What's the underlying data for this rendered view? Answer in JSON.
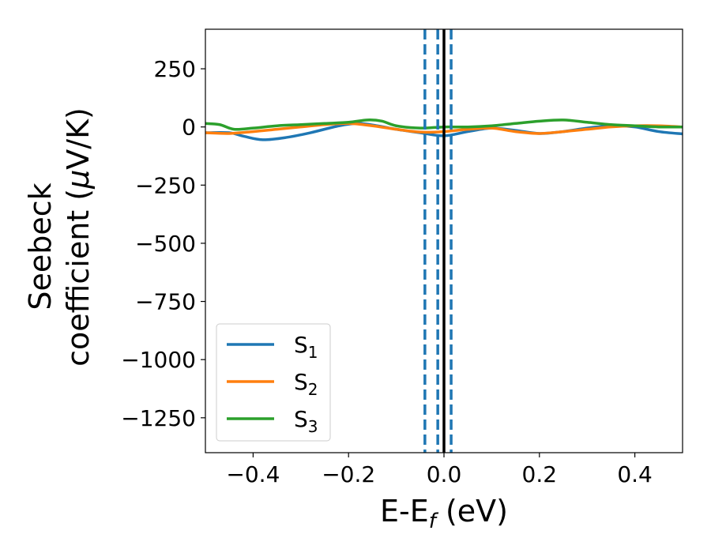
{
  "chart_data": {
    "type": "line",
    "xlabel": {
      "main": "E-E",
      "sub": "f",
      "suffix": " (eV)"
    },
    "ylabel": {
      "line1": "Seebeck",
      "line2_prefix": "coefficient  (",
      "line2_mu": "μ",
      "line2_suffix": "V/K)"
    },
    "xlim": [
      -0.5,
      0.5
    ],
    "ylim": [
      -1400,
      420
    ],
    "xticks": [
      {
        "value": -0.4,
        "label": "−0.4"
      },
      {
        "value": -0.2,
        "label": "−0.2"
      },
      {
        "value": 0.0,
        "label": "0.0"
      },
      {
        "value": 0.2,
        "label": "0.2"
      },
      {
        "value": 0.4,
        "label": "0.4"
      }
    ],
    "yticks": [
      {
        "value": 250,
        "label": "250"
      },
      {
        "value": 0,
        "label": "0"
      },
      {
        "value": -250,
        "label": "−250"
      },
      {
        "value": -500,
        "label": "−500"
      },
      {
        "value": -750,
        "label": "−750"
      },
      {
        "value": -1000,
        "label": "−1000"
      },
      {
        "value": -1250,
        "label": "−1250"
      }
    ],
    "grid": false,
    "legend_position": "lower-left",
    "series": [
      {
        "name": "S",
        "sub": "1",
        "color": "#1f77b4",
        "x": [
          -0.5,
          -0.45,
          -0.42,
          -0.38,
          -0.33,
          -0.28,
          -0.22,
          -0.18,
          -0.14,
          -0.1,
          -0.05,
          0.0,
          0.05,
          0.1,
          0.15,
          0.2,
          0.25,
          0.3,
          0.35,
          0.4,
          0.45,
          0.5
        ],
        "y": [
          -25,
          -25,
          -40,
          -55,
          -45,
          -25,
          5,
          15,
          5,
          -10,
          -25,
          -38,
          -20,
          -5,
          -15,
          -28,
          -20,
          -5,
          5,
          0,
          -20,
          -30
        ]
      },
      {
        "name": "S",
        "sub": "2",
        "color": "#ff7f0e",
        "x": [
          -0.5,
          -0.45,
          -0.4,
          -0.35,
          -0.3,
          -0.25,
          -0.2,
          -0.15,
          -0.1,
          -0.05,
          0.0,
          0.05,
          0.1,
          0.15,
          0.2,
          0.25,
          0.3,
          0.35,
          0.4,
          0.45,
          0.5
        ],
        "y": [
          -25,
          -28,
          -20,
          -10,
          0,
          10,
          15,
          5,
          -10,
          -22,
          -20,
          -10,
          -5,
          -20,
          -28,
          -20,
          -10,
          0,
          5,
          5,
          0
        ]
      },
      {
        "name": "S",
        "sub": "3",
        "color": "#2ca02c",
        "x": [
          -0.5,
          -0.47,
          -0.44,
          -0.4,
          -0.35,
          -0.3,
          -0.25,
          -0.2,
          -0.16,
          -0.13,
          -0.1,
          -0.05,
          0.0,
          0.05,
          0.1,
          0.15,
          0.2,
          0.25,
          0.3,
          0.35,
          0.4,
          0.45,
          0.5
        ],
        "y": [
          15,
          10,
          -10,
          -5,
          5,
          10,
          15,
          20,
          30,
          25,
          5,
          -5,
          0,
          0,
          5,
          15,
          25,
          30,
          20,
          10,
          5,
          0,
          0
        ]
      }
    ],
    "vlines": [
      {
        "x": 0.0,
        "color": "#000000",
        "style": "solid"
      },
      {
        "x": -0.04,
        "color": "#1f77b4",
        "style": "dashed"
      },
      {
        "x": -0.013,
        "color": "#1f77b4",
        "style": "dashed"
      },
      {
        "x": 0.015,
        "color": "#1f77b4",
        "style": "dashed"
      }
    ]
  }
}
